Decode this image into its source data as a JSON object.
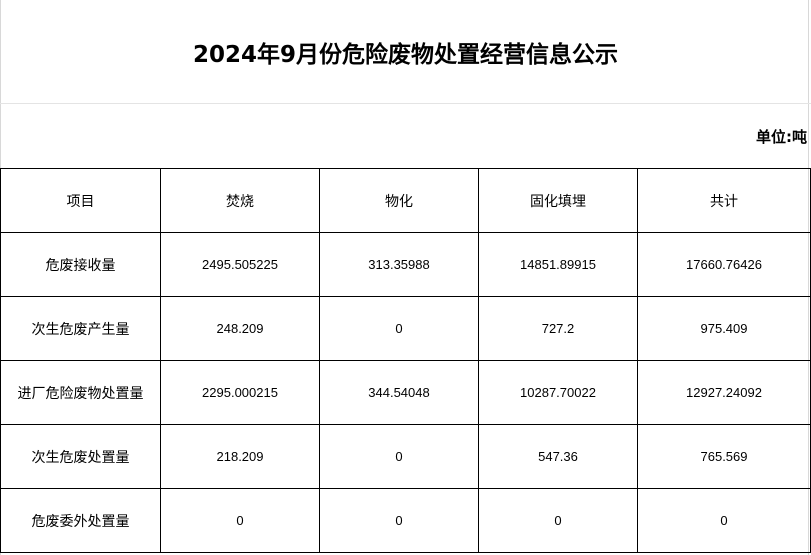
{
  "title": "2024年9月份危险废物处置经营信息公示",
  "unit": "单位:吨",
  "table": {
    "headers": [
      "项目",
      "焚烧",
      "物化",
      "固化填埋",
      "共计"
    ],
    "rows": [
      [
        "危废接收量",
        "2495.505225",
        "313.35988",
        "14851.89915",
        "17660.76426"
      ],
      [
        "次生危废产生量",
        "248.209",
        "0",
        "727.2",
        "975.409"
      ],
      [
        "进厂危险废物处置量",
        "2295.000215",
        "344.54048",
        "10287.70022",
        "12927.24092"
      ],
      [
        "次生危废处置量",
        "218.209",
        "0",
        "547.36",
        "765.569"
      ],
      [
        "危废委外处置量",
        "0",
        "0",
        "0",
        "0"
      ]
    ]
  }
}
